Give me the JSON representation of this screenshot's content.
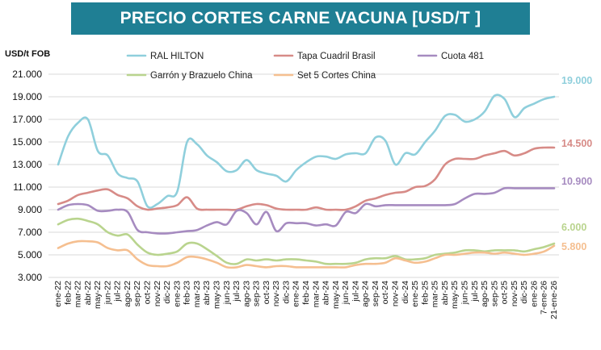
{
  "header": {
    "title": "PRECIO CORTES CARNE VACUNA [USD/T ]"
  },
  "chart_data": {
    "type": "line",
    "title": "PRECIO CORTES CARNE VACUNA [USD/T ]",
    "ylabel": "USD/t FOB",
    "xlabel": "",
    "ylim": [
      3000,
      21000
    ],
    "yticks": [
      "3.000",
      "5.000",
      "7.000",
      "9.000",
      "11.000",
      "13.000",
      "15.000",
      "17.000",
      "19.000",
      "21.000"
    ],
    "ytick_values": [
      3000,
      5000,
      7000,
      9000,
      11000,
      13000,
      15000,
      17000,
      19000,
      21000
    ],
    "grid": true,
    "legend_position": "top",
    "x": [
      "ene-22",
      "feb-22",
      "mar-22",
      "abr-22",
      "may-22",
      "jun-22",
      "jul-22",
      "ago-22",
      "sep-22",
      "oct-22",
      "nov-22",
      "dic-22",
      "ene-23",
      "feb-23",
      "mar-23",
      "abr-23",
      "may-23",
      "jun-23",
      "jul-23",
      "ago-23",
      "sep-23",
      "oct-23",
      "nov-23",
      "dic-23",
      "ene-24",
      "feb-24",
      "mar-24",
      "abr-24",
      "may-24",
      "jun-24",
      "jul-24",
      "ago-24",
      "sep-24",
      "oct-24",
      "nov-24",
      "dic-24",
      "ene-25",
      "feb-25",
      "mar-25",
      "abr-25",
      "may-25",
      "jun-25",
      "jul-25",
      "ago-25",
      "sep-25",
      "oct-25",
      "nov-25",
      "dic-25",
      "ene-26",
      "7-ene-26",
      "21-ene-26"
    ],
    "series": [
      {
        "name": "RAL HILTON",
        "color": "#8fcfdc",
        "end_label": "19.000",
        "values": [
          13000,
          15500,
          16700,
          17000,
          14200,
          13800,
          12200,
          11800,
          11500,
          9300,
          9500,
          10200,
          10600,
          15000,
          14800,
          13800,
          13200,
          12400,
          12500,
          13400,
          12500,
          12200,
          12000,
          11500,
          12500,
          13200,
          13700,
          13700,
          13500,
          13900,
          14000,
          14000,
          15400,
          15100,
          13000,
          14000,
          13900,
          15000,
          16000,
          17300,
          17400,
          16800,
          17000,
          17700,
          19100,
          18800,
          17200,
          18000,
          18400,
          18800,
          19000
        ]
      },
      {
        "name": "Tapa Cuadril Brasil",
        "color": "#d78b87",
        "end_label": "14.500",
        "values": [
          9500,
          9800,
          10300,
          10500,
          10700,
          10800,
          10300,
          10000,
          9300,
          9000,
          9100,
          9200,
          9400,
          10100,
          9100,
          9000,
          9000,
          9000,
          9000,
          9300,
          9500,
          9400,
          9100,
          9000,
          9000,
          9000,
          9200,
          9000,
          9000,
          9000,
          9300,
          9800,
          10000,
          10300,
          10500,
          10600,
          11000,
          11100,
          11700,
          13000,
          13500,
          13500,
          13500,
          13800,
          14000,
          14200,
          13800,
          14000,
          14400,
          14500,
          14500
        ]
      },
      {
        "name": "Cuota 481",
        "color": "#a68bc0",
        "end_label": "10.900",
        "values": [
          9000,
          9400,
          9500,
          9400,
          8900,
          8900,
          9000,
          8800,
          7200,
          7000,
          6900,
          6900,
          7000,
          7100,
          7200,
          7600,
          7900,
          7700,
          8900,
          8700,
          7700,
          8800,
          7100,
          7800,
          7800,
          7800,
          7600,
          7700,
          7600,
          8800,
          8700,
          9500,
          9300,
          9400,
          9400,
          9400,
          9400,
          9400,
          9400,
          9400,
          9500,
          10000,
          10400,
          10400,
          10500,
          10900,
          10900,
          10900,
          10900,
          10900,
          10900
        ]
      },
      {
        "name": "Garrón y Brazuelo China",
        "color": "#b9d48e",
        "end_label": "6.000",
        "values": [
          7700,
          8100,
          8200,
          8000,
          7700,
          7000,
          6700,
          6800,
          5900,
          5200,
          5000,
          5100,
          5300,
          6000,
          6000,
          5500,
          4900,
          4300,
          4200,
          4600,
          4500,
          4600,
          4500,
          4600,
          4600,
          4500,
          4400,
          4200,
          4200,
          4200,
          4300,
          4600,
          4700,
          4700,
          4900,
          4600,
          4600,
          4700,
          5000,
          5100,
          5200,
          5400,
          5400,
          5300,
          5400,
          5400,
          5400,
          5300,
          5500,
          5700,
          6000
        ]
      },
      {
        "name": "Set 5 Cortes China",
        "color": "#f5bf90",
        "end_label": "5.800",
        "values": [
          5600,
          6000,
          6200,
          6200,
          6100,
          5600,
          5400,
          5400,
          4600,
          4100,
          4000,
          4000,
          4300,
          4800,
          4800,
          4600,
          4300,
          3900,
          3900,
          4100,
          4000,
          3900,
          4000,
          4000,
          3900,
          3900,
          3900,
          3900,
          3900,
          3900,
          4100,
          4200,
          4200,
          4300,
          4700,
          4500,
          4300,
          4400,
          4700,
          5000,
          5000,
          5100,
          5200,
          5200,
          5100,
          5200,
          5100,
          5000,
          5100,
          5300,
          5800
        ]
      }
    ]
  }
}
